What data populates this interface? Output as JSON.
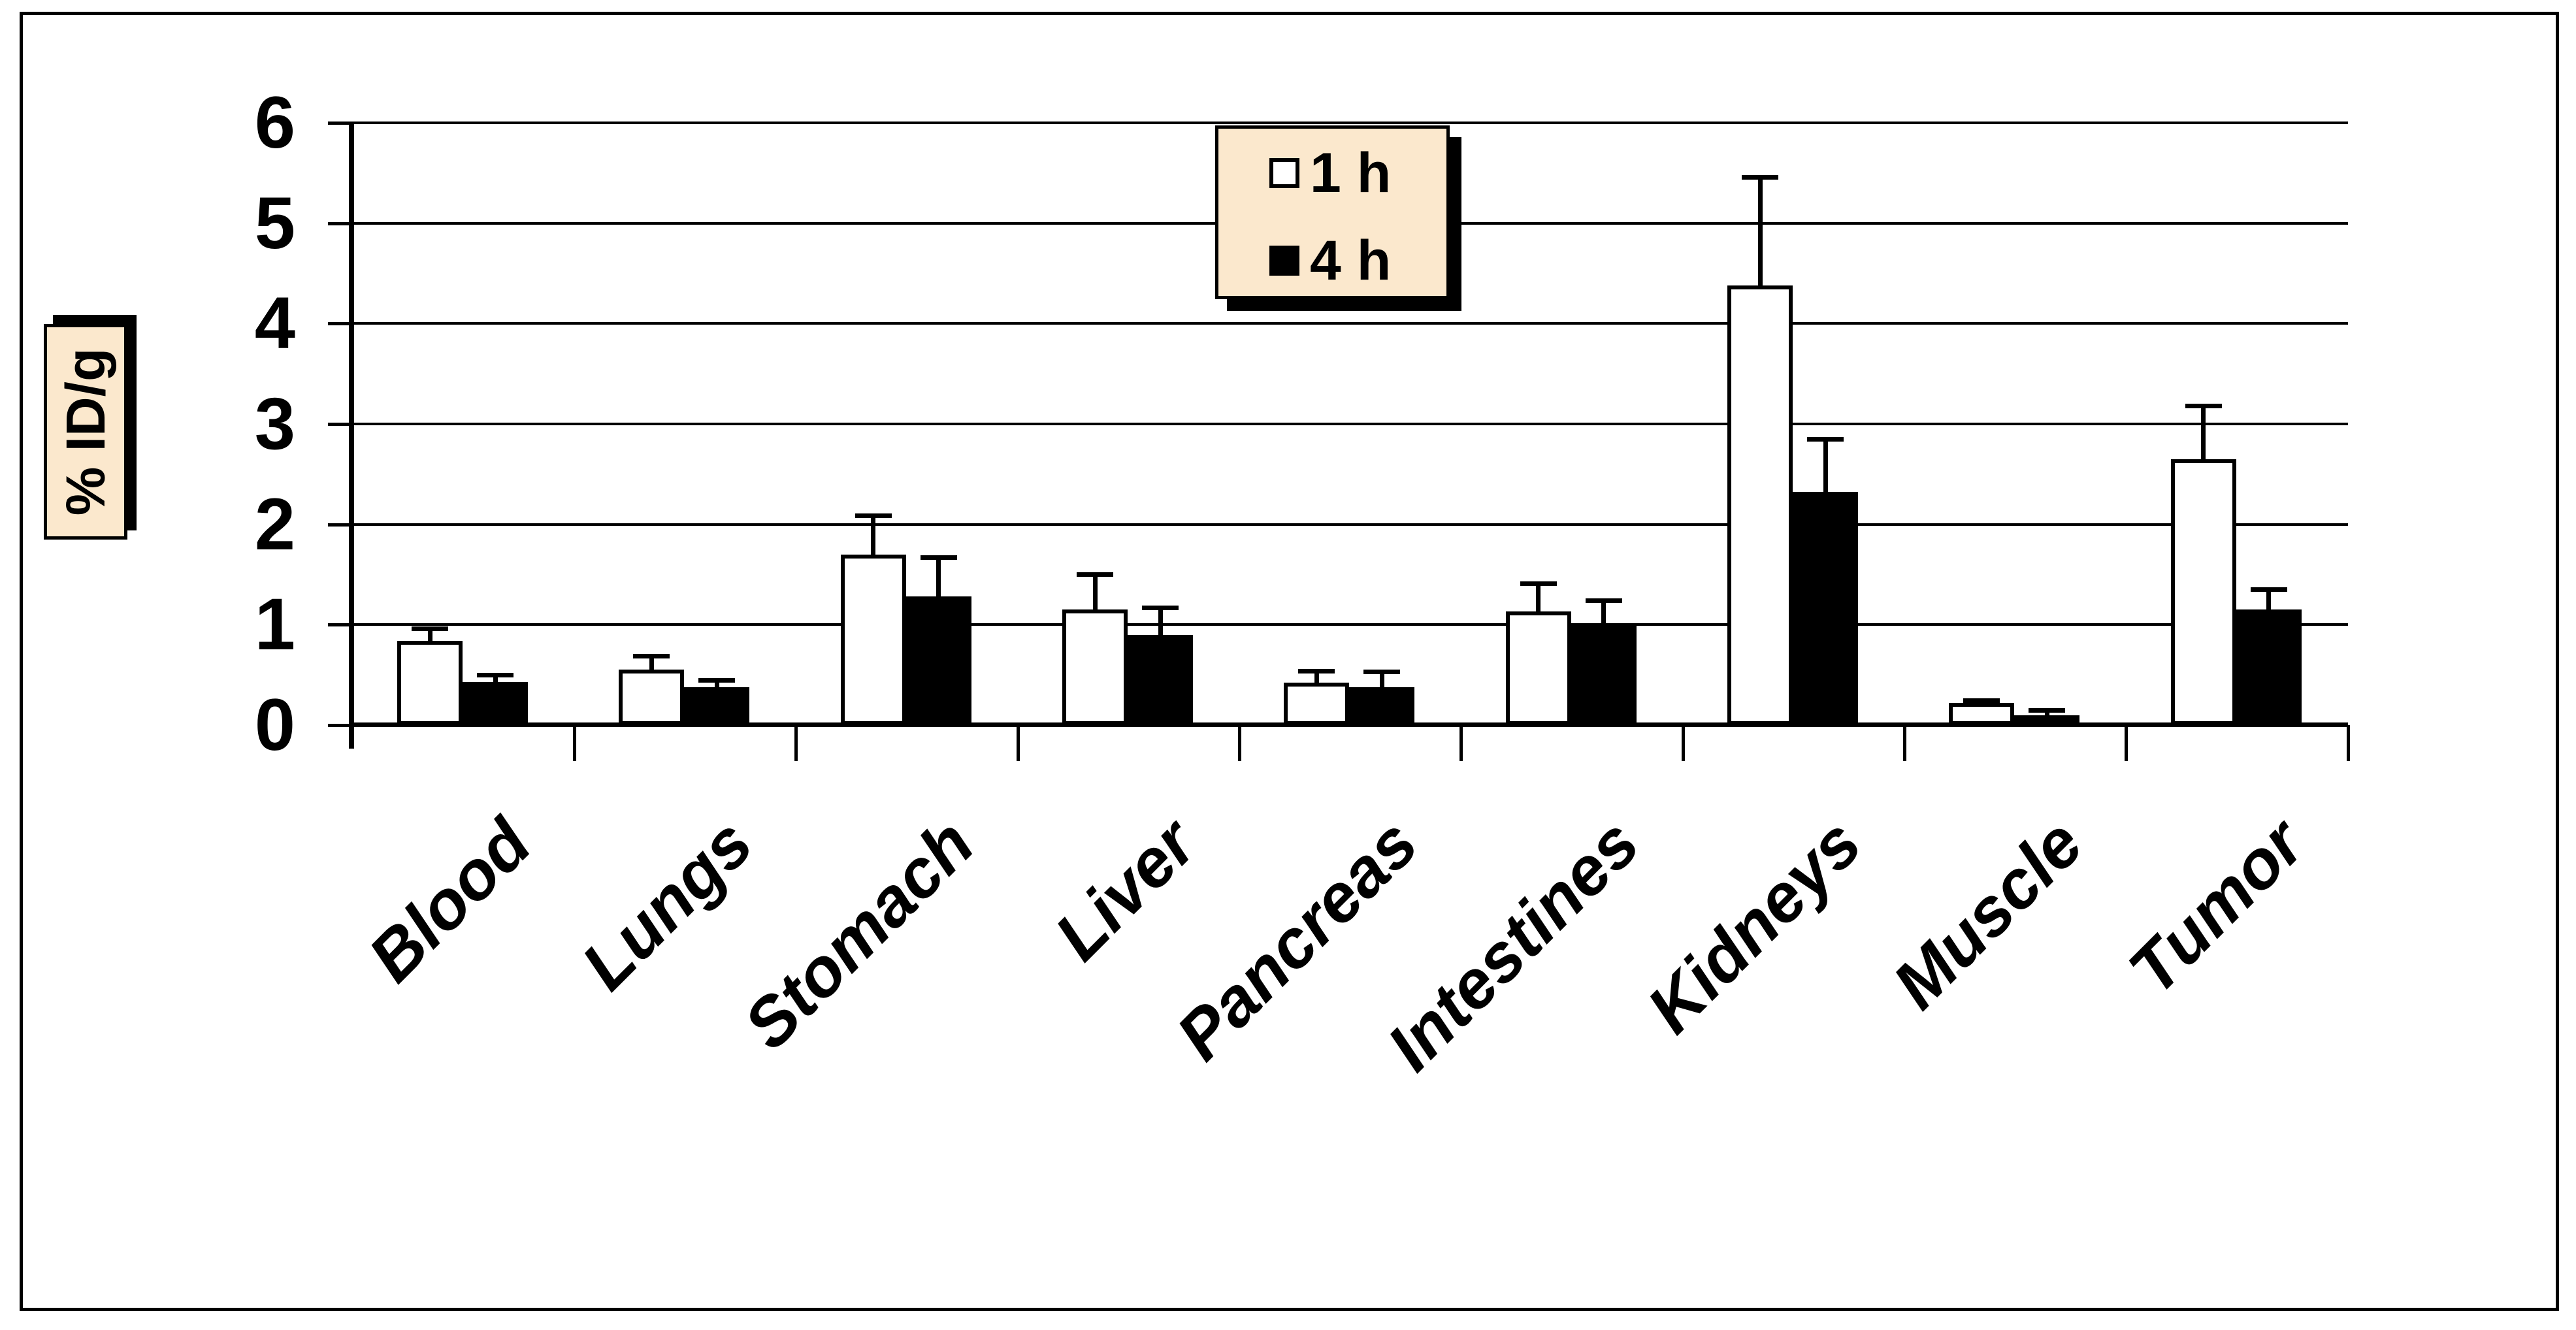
{
  "figure": {
    "background": "#ffffff",
    "frame_color": "#000000"
  },
  "y_axis": {
    "label": "% ID/g",
    "label_box_fill": "#FBE8CD",
    "tick_labels": [
      "0",
      "1",
      "2",
      "3",
      "4",
      "5",
      "6"
    ]
  },
  "legend": {
    "box_fill": "#FBE8CD",
    "border_color": "#000000",
    "items": [
      {
        "label": "1 h",
        "swatch_fill": "#ffffff"
      },
      {
        "label": "4 h",
        "swatch_fill": "#000000"
      }
    ]
  },
  "chart_data": {
    "type": "bar",
    "categories": [
      "Blood",
      "Lungs",
      "Stomach",
      "Liver",
      "Pancreas",
      "Intestines",
      "Kidneys",
      "Muscle",
      "Tumor"
    ],
    "series": [
      {
        "name": "1 h",
        "fill": "#ffffff",
        "values": [
          0.84,
          0.55,
          1.7,
          1.15,
          0.42,
          1.13,
          4.38,
          0.22,
          2.65
        ],
        "errors": [
          0.14,
          0.16,
          0.41,
          0.37,
          0.14,
          0.3,
          1.1,
          0.05,
          0.55
        ]
      },
      {
        "name": "4 h",
        "fill": "#000000",
        "values": [
          0.43,
          0.38,
          1.28,
          0.9,
          0.38,
          1.0,
          2.32,
          0.1,
          1.15
        ],
        "errors": [
          0.09,
          0.09,
          0.41,
          0.29,
          0.17,
          0.26,
          0.55,
          0.07,
          0.22
        ]
      }
    ],
    "ylabel": "% ID/g",
    "ylim": [
      0,
      6
    ],
    "yticks": [
      0,
      1,
      2,
      3,
      4,
      5,
      6
    ],
    "grid": true,
    "legend_position": "top-center",
    "error_bars": "upper-only",
    "bar_outline_color": "#000000"
  }
}
